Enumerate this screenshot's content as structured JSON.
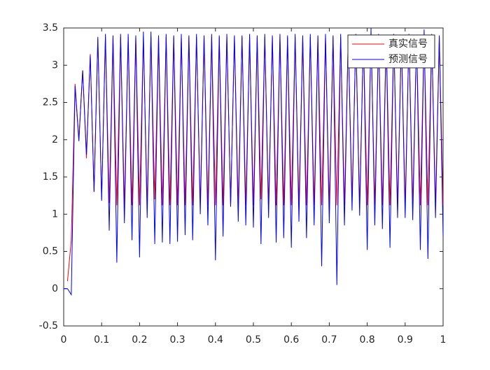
{
  "chart_data": {
    "type": "line",
    "x": [
      0,
      0.01,
      0.02,
      0.03,
      0.04,
      0.05,
      0.06,
      0.07,
      0.08,
      0.09,
      0.1,
      0.11,
      0.12,
      0.13,
      0.14,
      0.15,
      0.16,
      0.17,
      0.18,
      0.19,
      0.2,
      0.21,
      0.22,
      0.23,
      0.24,
      0.25,
      0.26,
      0.27,
      0.28,
      0.29,
      0.3,
      0.31,
      0.32,
      0.33,
      0.34,
      0.35,
      0.36,
      0.37,
      0.38,
      0.39,
      0.4,
      0.41,
      0.42,
      0.43,
      0.44,
      0.45,
      0.46,
      0.47,
      0.48,
      0.49,
      0.5,
      0.51,
      0.52,
      0.53,
      0.54,
      0.55,
      0.56,
      0.57,
      0.58,
      0.59,
      0.6,
      0.61,
      0.62,
      0.63,
      0.64,
      0.65,
      0.66,
      0.67,
      0.68,
      0.69,
      0.7,
      0.71,
      0.72,
      0.73,
      0.74,
      0.75,
      0.76,
      0.77,
      0.78,
      0.79,
      0.8,
      0.81,
      0.82,
      0.83,
      0.84,
      0.85,
      0.86,
      0.87,
      0.88,
      0.89,
      0.9,
      0.91,
      0.92,
      0.93,
      0.94,
      0.95,
      0.96,
      0.97,
      0.98,
      0.99,
      1
    ],
    "series": [
      {
        "name": "真实信号",
        "color": "#ff0000",
        "values": [
          null,
          0.1,
          0.65,
          2.75,
          2.0,
          2.93,
          1.75,
          3.15,
          1.3,
          3.35,
          1.2,
          3.38,
          1.15,
          3.38,
          1.12,
          3.38,
          1.12,
          3.38,
          1.12,
          3.38,
          1.12,
          3.38,
          1.12,
          3.38,
          1.2,
          3.38,
          1.12,
          3.38,
          1.12,
          3.38,
          1.12,
          3.38,
          1.12,
          3.38,
          1.12,
          3.38,
          1.12,
          3.38,
          1.12,
          3.38,
          1.12,
          3.38,
          1.12,
          3.38,
          1.12,
          3.38,
          1.12,
          3.38,
          1.12,
          3.38,
          1.12,
          3.38,
          1.2,
          3.38,
          1.12,
          3.38,
          1.12,
          3.38,
          1.12,
          3.38,
          1.12,
          3.38,
          1.12,
          3.38,
          1.12,
          3.38,
          1.12,
          3.38,
          1.12,
          3.38,
          1.12,
          3.38,
          1.12,
          3.38,
          1.12,
          3.38,
          1.2,
          3.38,
          1.12,
          3.38,
          1.12,
          3.38,
          1.12,
          3.38,
          1.12,
          3.38,
          1.12,
          3.38,
          1.12,
          3.38,
          1.12,
          3.38,
          1.12,
          3.38,
          1.12,
          3.38,
          1.12,
          3.38,
          1.12,
          3.38,
          1.12
        ]
      },
      {
        "name": "预测信号",
        "color": "#0000ff",
        "values": [
          0,
          0,
          -0.08,
          2.72,
          1.98,
          2.93,
          1.8,
          3.13,
          1.3,
          3.38,
          1.18,
          3.42,
          0.78,
          3.4,
          0.35,
          3.42,
          0.88,
          3.42,
          0.65,
          3.4,
          0.42,
          3.45,
          0.95,
          3.45,
          0.6,
          3.4,
          0.62,
          3.42,
          0.6,
          3.4,
          0.63,
          3.42,
          0.72,
          3.4,
          0.65,
          3.42,
          1.0,
          3.4,
          0.85,
          3.42,
          0.38,
          3.4,
          0.7,
          3.42,
          1.1,
          3.4,
          0.9,
          3.4,
          0.85,
          3.42,
          0.82,
          3.4,
          0.6,
          3.42,
          0.95,
          3.4,
          0.62,
          3.42,
          0.68,
          3.4,
          0.55,
          3.42,
          0.9,
          3.4,
          0.68,
          3.42,
          0.85,
          3.4,
          0.3,
          3.42,
          0.88,
          3.4,
          0.05,
          3.42,
          0.85,
          3.4,
          1.05,
          3.42,
          0.98,
          3.4,
          0.52,
          3.5,
          0.85,
          3.42,
          0.8,
          3.4,
          0.55,
          3.42,
          0.95,
          3.4,
          0.95,
          3.42,
          0.92,
          3.4,
          0.52,
          3.48,
          0.4,
          3.42,
          0.95,
          3.4,
          0.7
        ]
      }
    ],
    "xlim": [
      0,
      1
    ],
    "xticks": [
      0,
      0.1,
      0.2,
      0.3,
      0.4,
      0.5,
      0.6,
      0.7,
      0.8,
      0.9,
      1
    ],
    "ylim": [
      -0.5,
      3.5
    ],
    "yticks": [
      -0.5,
      0,
      0.5,
      1,
      1.5,
      2,
      2.5,
      3,
      3.5
    ],
    "grid": false,
    "legend": "northeast"
  }
}
